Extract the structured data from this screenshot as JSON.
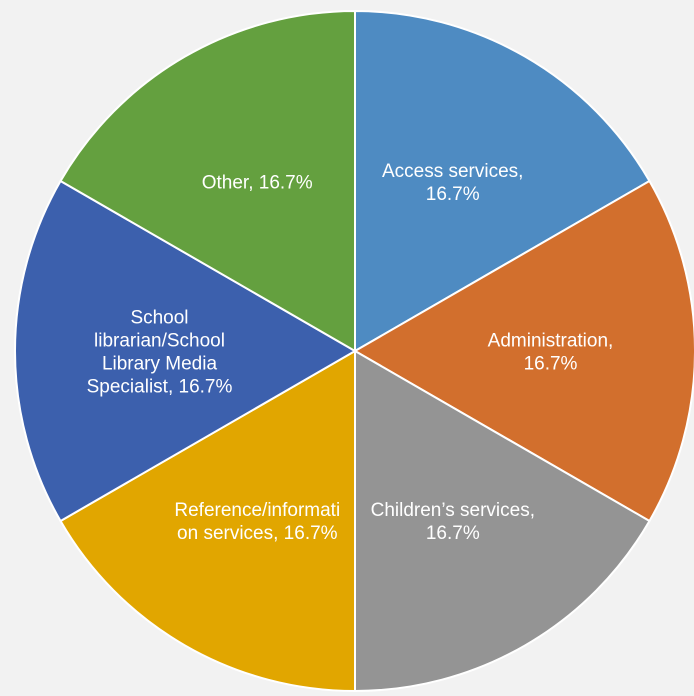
{
  "chart_data": {
    "type": "pie",
    "categories": [
      "Access services",
      "Administration",
      "Children’s services",
      "Reference/information services",
      "School librarian/School Library Media Specialist",
      "Other"
    ],
    "values": [
      16.7,
      16.7,
      16.7,
      16.7,
      16.7,
      16.7
    ],
    "colors": [
      "#4e8bc2",
      "#d26f2d",
      "#949494",
      "#e1a600",
      "#3c60ad",
      "#64a03f"
    ],
    "data_labels": [
      [
        "Access services,",
        "16.7%"
      ],
      [
        "Administration,",
        "16.7%"
      ],
      [
        "Children’s services,",
        "16.7%"
      ],
      [
        "Reference/informati",
        "on services, 16.7%"
      ],
      [
        "School",
        "librarian/School",
        "Library Media",
        "Specialist, 16.7%"
      ],
      [
        "Other, 16.7%"
      ]
    ],
    "title": "",
    "legend": "none",
    "background": "#f2f2f2"
  }
}
